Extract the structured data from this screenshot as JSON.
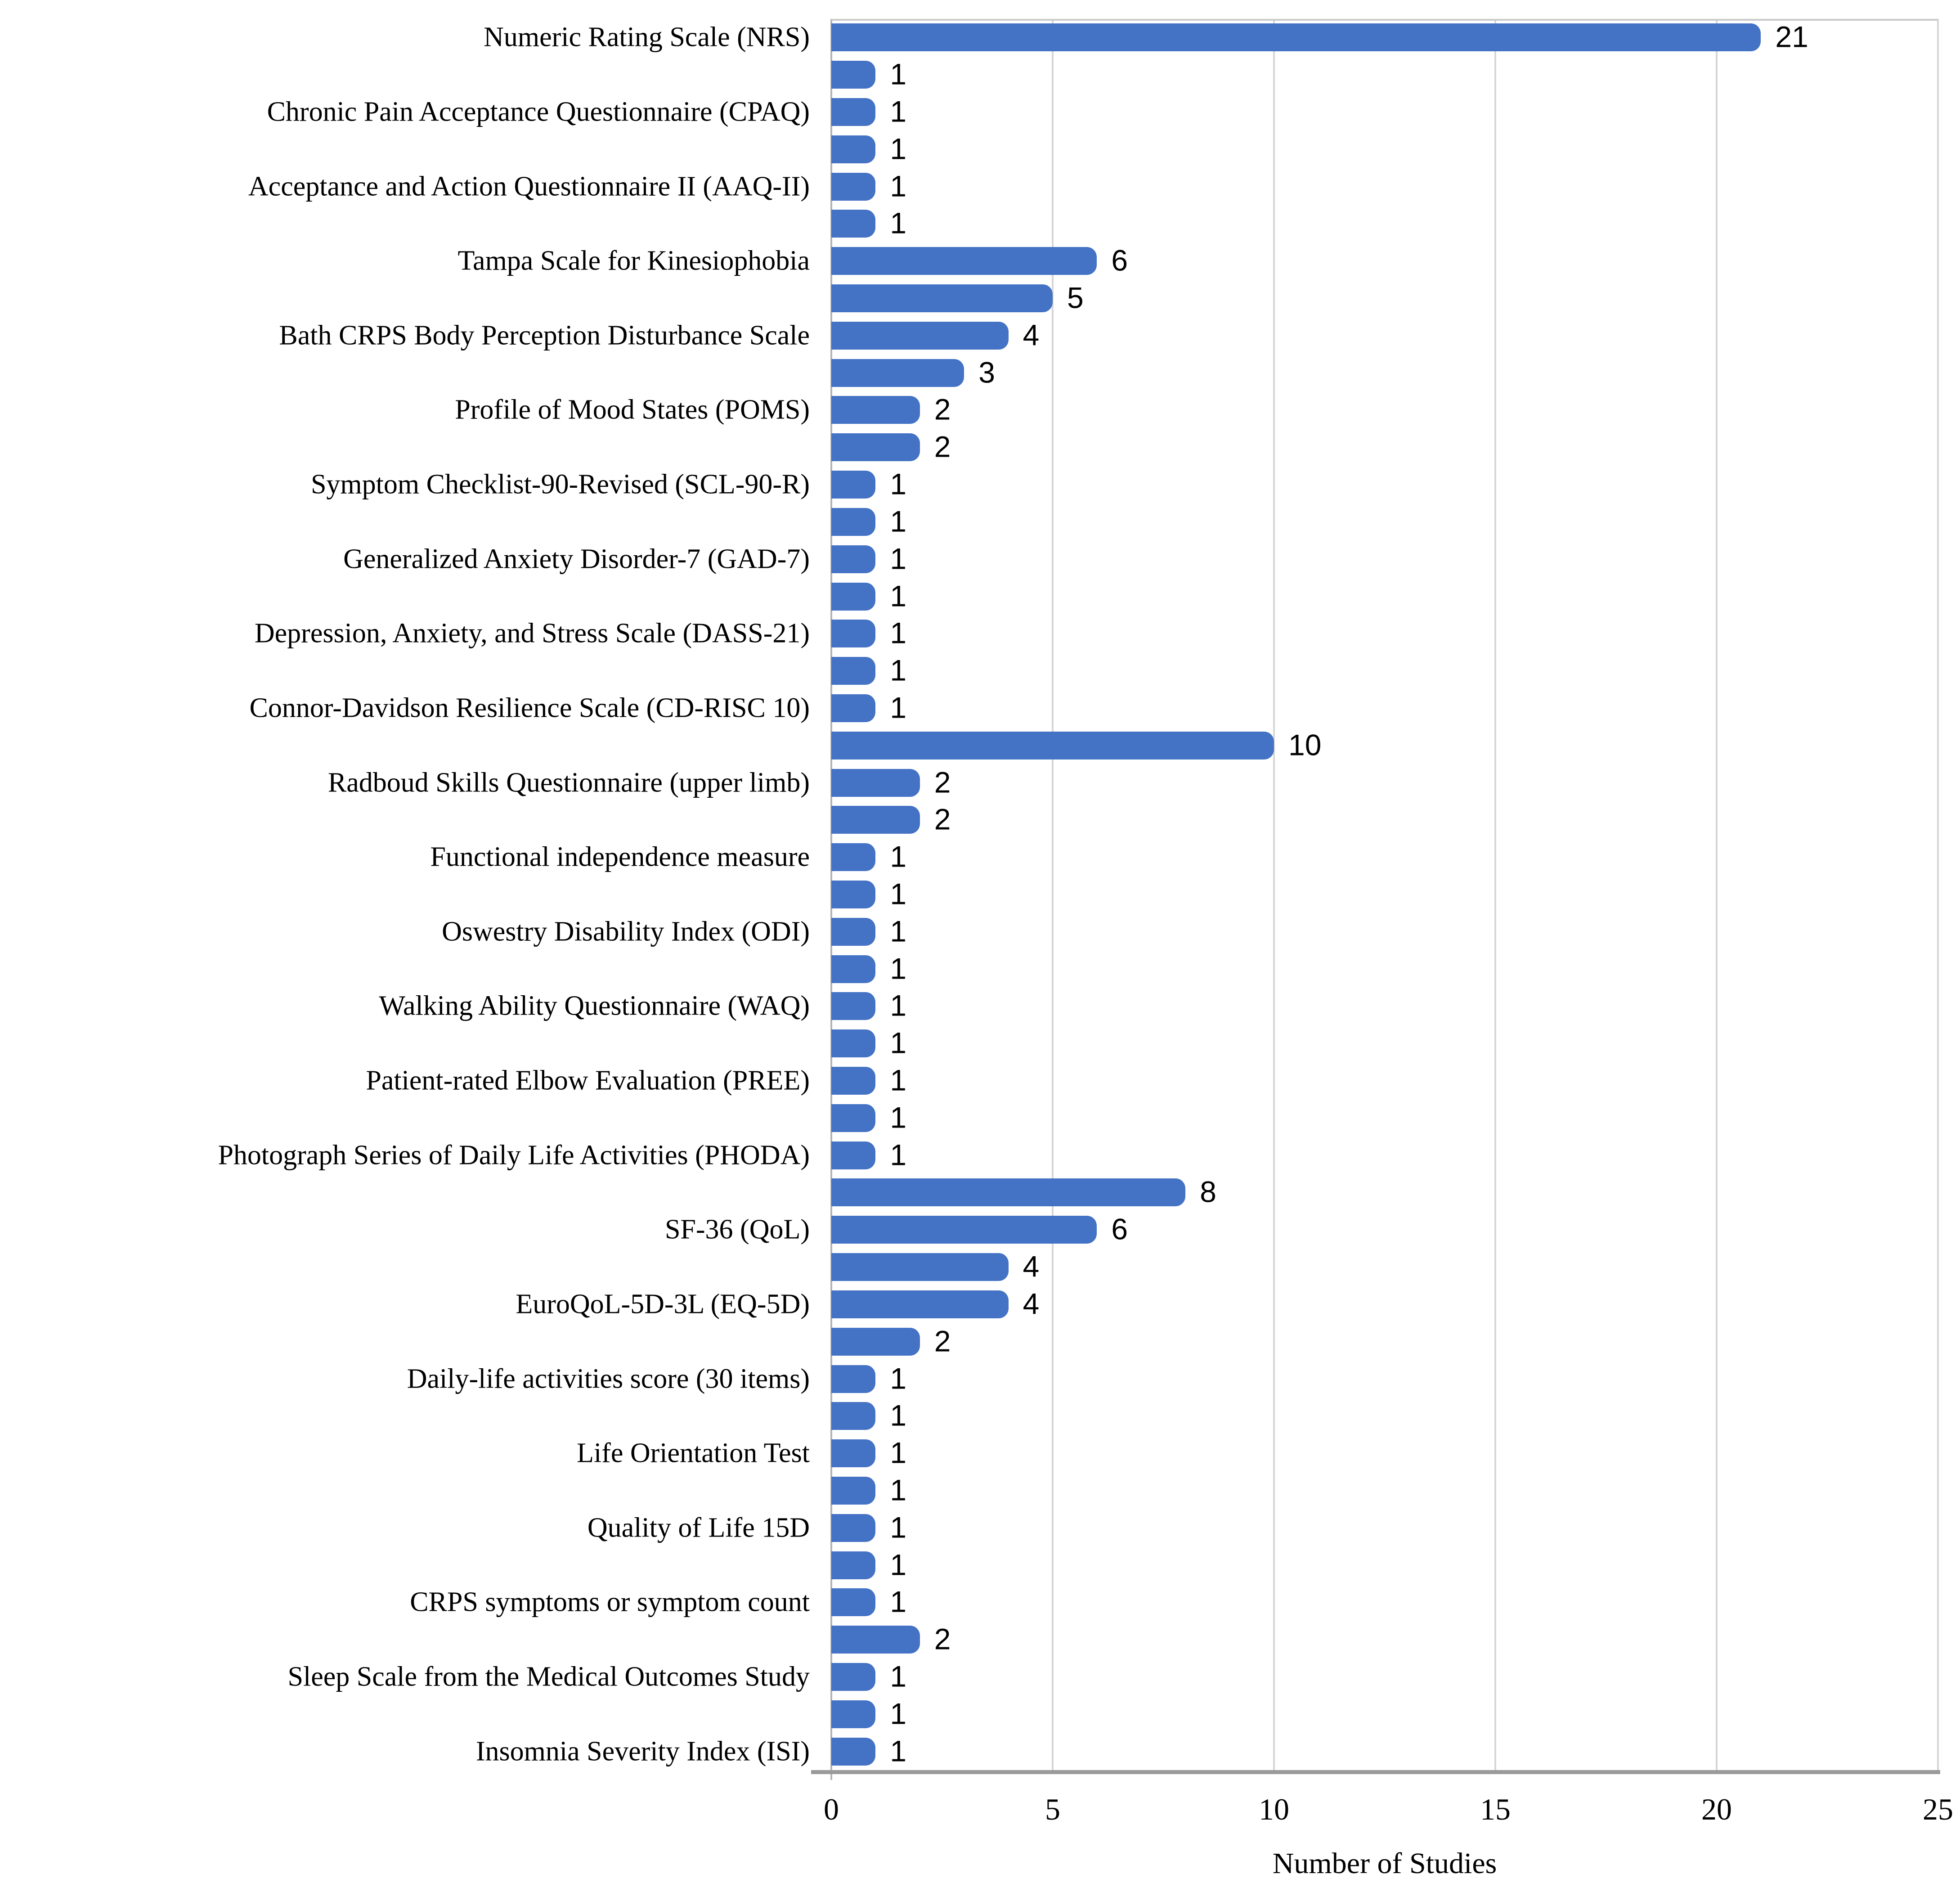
{
  "chart_data": {
    "type": "bar",
    "orientation": "horizontal",
    "title": "",
    "xlabel": "Number of Studies",
    "ylabel": "",
    "xlim": [
      0,
      25
    ],
    "xticks": [
      0,
      5,
      10,
      15,
      20,
      25
    ],
    "grid": "vertical",
    "legend": "none",
    "colors": {
      "bar": "#4472C4",
      "gridline": "#D6D6D6",
      "axis_line": "#9A9A9A",
      "text": "#000000"
    },
    "rows": [
      {
        "label": "Numeric Rating Scale (NRS)",
        "value": 21
      },
      {
        "label": "",
        "value": 1
      },
      {
        "label": "Chronic Pain Acceptance Questionnaire (CPAQ)",
        "value": 1
      },
      {
        "label": "",
        "value": 1
      },
      {
        "label": "Acceptance and Action Questionnaire II (AAQ-II)",
        "value": 1
      },
      {
        "label": "",
        "value": 1
      },
      {
        "label": "Tampa Scale for Kinesiophobia",
        "value": 6
      },
      {
        "label": "",
        "value": 5
      },
      {
        "label": "Bath CRPS Body Perception Disturbance Scale",
        "value": 4
      },
      {
        "label": "",
        "value": 3
      },
      {
        "label": "Profile of Mood States (POMS)",
        "value": 2
      },
      {
        "label": "",
        "value": 2
      },
      {
        "label": "Symptom Checklist-90-Revised (SCL-90-R)",
        "value": 1
      },
      {
        "label": "",
        "value": 1
      },
      {
        "label": "Generalized Anxiety Disorder-7 (GAD-7)",
        "value": 1
      },
      {
        "label": "",
        "value": 1
      },
      {
        "label": "Depression, Anxiety, and Stress Scale (DASS-21)",
        "value": 1
      },
      {
        "label": "",
        "value": 1
      },
      {
        "label": "Connor-Davidson Resilience Scale (CD-RISC 10)",
        "value": 1
      },
      {
        "label": "",
        "value": 10
      },
      {
        "label": "Radboud Skills Questionnaire (upper limb)",
        "value": 2
      },
      {
        "label": "",
        "value": 2
      },
      {
        "label": "Functional independence measure",
        "value": 1
      },
      {
        "label": "",
        "value": 1
      },
      {
        "label": "Oswestry Disability Index (ODI)",
        "value": 1
      },
      {
        "label": "",
        "value": 1
      },
      {
        "label": "Walking Ability Questionnaire (WAQ)",
        "value": 1
      },
      {
        "label": "",
        "value": 1
      },
      {
        "label": "Patient-rated Elbow Evaluation (PREE)",
        "value": 1
      },
      {
        "label": "",
        "value": 1
      },
      {
        "label": "Photograph Series of Daily Life Activities (PHODA)",
        "value": 1
      },
      {
        "label": "",
        "value": 8
      },
      {
        "label": "SF-36 (QoL)",
        "value": 6
      },
      {
        "label": "",
        "value": 4
      },
      {
        "label": "EuroQoL-5D-3L (EQ-5D)",
        "value": 4
      },
      {
        "label": "",
        "value": 2
      },
      {
        "label": "Daily-life activities score (30 items)",
        "value": 1
      },
      {
        "label": "",
        "value": 1
      },
      {
        "label": "Life Orientation Test",
        "value": 1
      },
      {
        "label": "",
        "value": 1
      },
      {
        "label": "Quality of Life 15D",
        "value": 1
      },
      {
        "label": "",
        "value": 1
      },
      {
        "label": "CRPS symptoms or symptom count",
        "value": 1
      },
      {
        "label": "",
        "value": 2
      },
      {
        "label": "Sleep Scale from the Medical Outcomes Study",
        "value": 1
      },
      {
        "label": "",
        "value": 1
      },
      {
        "label": "Insomnia Severity Index (ISI)",
        "value": 1
      }
    ]
  }
}
